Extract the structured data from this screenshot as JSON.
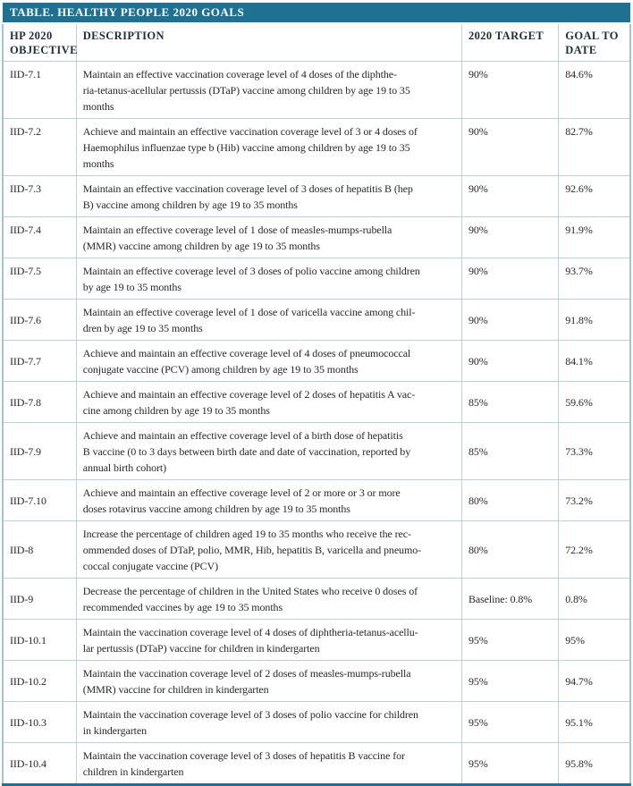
{
  "title": "TABLE. HEALTHY PEOPLE 2020 GOALS",
  "columns": {
    "objective": "HP 2020 OBJECTIVE",
    "description": "DESCRIPTION",
    "target": "2020 TARGET",
    "goal": "GOAL TO DATE"
  },
  "rows": [
    {
      "objective": "IID-7.1",
      "description": "Maintain an effective vaccination coverage level of 4 doses of the diphthe-\nria-tetanus-acellular pertussis (DTaP) vaccine among children by age 19 to 35\nmonths",
      "target": "90%",
      "goal": "84.6%"
    },
    {
      "objective": "IID-7.2",
      "description": "Achieve and maintain an effective vaccination coverage level of 3 or 4 doses of\nHaemophilus influenzae type b (Hib) vaccine among children by age 19 to 35\nmonths",
      "target": "90%",
      "goal": "82.7%"
    },
    {
      "objective": "IID-7.3",
      "description": "Maintain an effective vaccination coverage level of 3 doses of hepatitis B (hep\nB) vaccine among children by age 19 to 35 months",
      "target": "90%",
      "goal": "92.6%"
    },
    {
      "objective": "IID-7.4",
      "description": "Maintain an effective coverage level of 1 dose of measles-mumps-rubella\n(MMR) vaccine among children by age 19 to 35 months",
      "target": "90%",
      "goal": "91.9%"
    },
    {
      "objective": "IID-7.5",
      "description": "Maintain an effective coverage level of 3 doses of polio vaccine among children\nby age 19 to 35 months",
      "target": "90%",
      "goal": "93.7%"
    },
    {
      "objective": "IID-7.6",
      "description": "Maintain an effective coverage level of 1 dose of varicella vaccine among chil-\ndren by age 19 to 35 months",
      "target": "90%",
      "goal": "91.8%"
    },
    {
      "objective": "IID-7.7",
      "description": "Achieve and maintain an effective coverage level of 4 doses of pneumococcal\nconjugate vaccine (PCV) among children by age 19 to 35 months",
      "target": "90%",
      "goal": "84.1%"
    },
    {
      "objective": "IID-7.8",
      "description": "Achieve and maintain an effective coverage level of 2 doses of hepatitis A vac-\ncine among children by age 19 to 35 months",
      "target": "85%",
      "goal": "59.6%"
    },
    {
      "objective": "IID-7.9",
      "description": "Achieve and maintain an effective coverage level of a birth dose of hepatitis\nB vaccine (0 to 3 days between birth date and date of vaccination, reported by\nannual birth cohort)",
      "target": "85%",
      "goal": "73.3%"
    },
    {
      "objective": "IID-7.10",
      "description": "Achieve and maintain an effective coverage level of 2 or more or 3 or more\ndoses rotavirus vaccine among children by age 19 to 35 months",
      "target": "80%",
      "goal": "73.2%"
    },
    {
      "objective": "IID-8",
      "description": "Increase the percentage of children aged 19 to 35 months who receive the rec-\nommended doses of DTaP, polio, MMR, Hib, hepatitis B, varicella and pneumo-\ncoccal conjugate vaccine (PCV)",
      "target": "80%",
      "goal": "72.2%"
    },
    {
      "objective": "IID-9",
      "description": "Decrease the percentage of children in the United States who receive 0 doses of\nrecommended vaccines by age 19 to 35 months",
      "target": "Baseline: 0.8%",
      "goal": "0.8%"
    },
    {
      "objective": "IID-10.1",
      "description": "Maintain the vaccination coverage level of 4 doses of diphtheria-tetanus-acellu-\nlar pertussis (DTaP) vaccine for children in kindergarten",
      "target": "95%",
      "goal": "95%"
    },
    {
      "objective": "IID-10.2",
      "description": "Maintain the vaccination coverage level of 2 doses of measles-mumps-rubella\n(MMR) vaccine for children in kindergarten",
      "target": "95%",
      "goal": "94.7%"
    },
    {
      "objective": "IID-10.3",
      "description": "Maintain the vaccination coverage level of 3 doses of polio vaccine for children\nin kindergarten",
      "target": "95%",
      "goal": "95.1%"
    },
    {
      "objective": "IID-10.4",
      "description": "Maintain the vaccination coverage level of 3 doses of hepatitis B vaccine for\nchildren in kindergarten",
      "target": "95%",
      "goal": "95.8%"
    }
  ],
  "colors": {
    "accent_teal": "#1e7191",
    "inner_border": "#b9d1db",
    "outer_border": "#a3c4d3",
    "header_text": "#1c2e38",
    "body_text": "#272727"
  }
}
